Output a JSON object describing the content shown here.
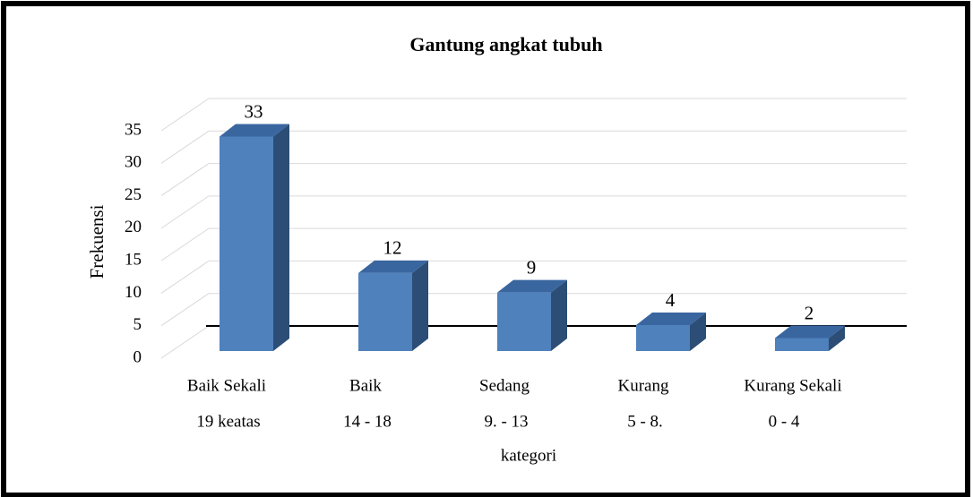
{
  "chart_data": {
    "type": "bar3d",
    "title": "Gantung angkat tubuh",
    "categories": [
      "Baik Sekali",
      "Baik",
      "Sedang",
      "Kurang",
      "Kurang Sekali"
    ],
    "subcategories": [
      "19 keatas",
      "14 - 18",
      "9. - 13",
      "5 - 8.",
      "0 - 4"
    ],
    "values": [
      33,
      12,
      9,
      4,
      2
    ],
    "color": "#4f81bd",
    "ylim": [
      0,
      35
    ],
    "yticks": [
      0,
      5,
      10,
      15,
      20,
      25,
      30,
      35
    ],
    "ylabel": "Frekuensi",
    "xlabel": "kategori",
    "grid": true
  }
}
